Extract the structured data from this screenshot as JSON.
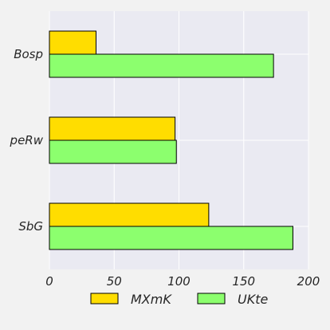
{
  "chart_data": {
    "type": "bar",
    "orientation": "horizontal",
    "categories": [
      "Bosp",
      "peRw",
      "SbG"
    ],
    "series": [
      {
        "name": "MXmK",
        "values": [
          36,
          97,
          123
        ],
        "color": "#ffdd00"
      },
      {
        "name": "UKte",
        "values": [
          173,
          98,
          188
        ],
        "color": "#8cff6e"
      }
    ],
    "x_ticks": [
      0,
      50,
      100,
      150,
      200
    ],
    "xlim": [
      0,
      200
    ],
    "title": "",
    "xlabel": "",
    "ylabel": "",
    "grid": true,
    "legend_position": "bottom"
  },
  "colors": {
    "background": "#f2f2f2",
    "plot_background": "#eaeaf2",
    "grid": "#ffffff",
    "bar_edge": "#000000",
    "text": "#262626"
  }
}
